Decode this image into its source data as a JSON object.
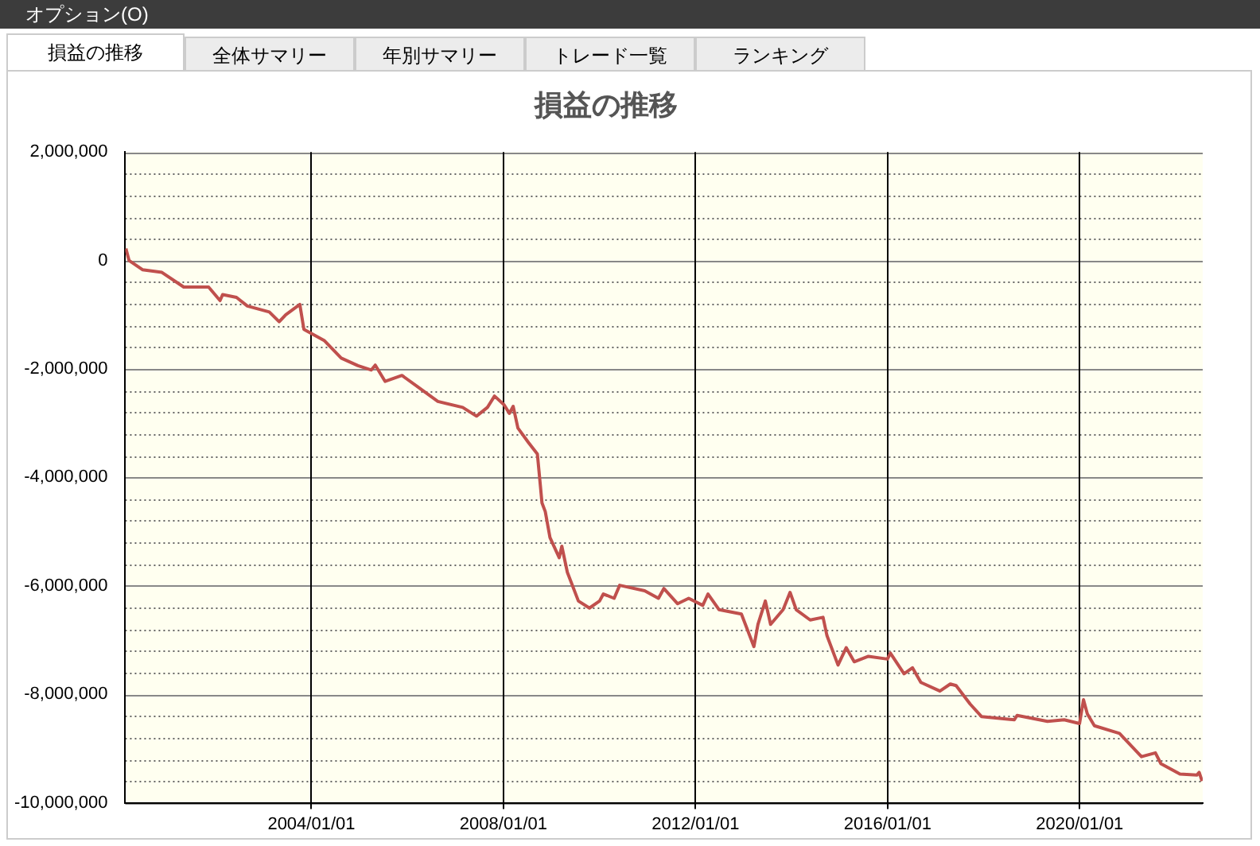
{
  "chart_data": {
    "type": "line",
    "title": "損益の推移",
    "annotations": [
      "オプション(O)",
      "損益の推移",
      "全体サマリー",
      "年別サマリー",
      "トレード一覧",
      "ランキング"
    ],
    "x": [
      "2000-02-20",
      "2000-03-15",
      "2000-06-25",
      "2000-11-20",
      "2001-05-05",
      "2001-11-10",
      "2002-02-05",
      "2002-02-25",
      "2002-06-10",
      "2002-09-01",
      "2003-02-15",
      "2003-05-01",
      "2003-06-20",
      "2003-10-05",
      "2003-11-05",
      "2004-04-10",
      "2004-08-15",
      "2004-12-20",
      "2005-04-01",
      "2005-05-01",
      "2005-07-15",
      "2005-11-20",
      "2006-03-25",
      "2006-08-20",
      "2007-02-25",
      "2007-06-10",
      "2007-09-01",
      "2007-10-25",
      "2008-01-05",
      "2008-02-15",
      "2008-03-15",
      "2008-04-20",
      "2008-07-10",
      "2008-09-15",
      "2008-10-05",
      "2008-10-20",
      "2008-11-14",
      "2008-12-20",
      "2009-02-28",
      "2009-03-20",
      "2009-05-01",
      "2009-07-24",
      "2009-10-16",
      "2010-01-01",
      "2010-01-30",
      "2010-04-22",
      "2010-06-03",
      "2010-12-10",
      "2011-03-25",
      "2011-05-05",
      "2011-08-18",
      "2011-11-10",
      "2012-02-25",
      "2012-04-05",
      "2012-06-28",
      "2012-12-15",
      "2013-03-20",
      "2013-04-20",
      "2013-06-15",
      "2013-07-25",
      "2013-10-28",
      "2013-12-20",
      "2014-02-05",
      "2014-05-22",
      "2014-08-28",
      "2014-09-27",
      "2014-12-20",
      "2015-02-20",
      "2015-04-22",
      "2015-08-08",
      "2015-12-31",
      "2016-01-22",
      "2016-05-05",
      "2016-07-08",
      "2016-09-10",
      "2017-02-02",
      "2017-04-22",
      "2017-06-05",
      "2017-09-20",
      "2017-12-15",
      "2018-08-22",
      "2018-09-12",
      "2019-05-01",
      "2019-09-05",
      "2019-12-31",
      "2020-01-30",
      "2020-02-28",
      "2020-04-22",
      "2020-10-30",
      "2021-04-15",
      "2021-07-30",
      "2021-09-10",
      "2022-02-02",
      "2022-06-10",
      "2022-06-28",
      "2022-07-20"
    ],
    "series": [
      {
        "color": "#c0504d",
        "values": [
          220000,
          0,
          -170000,
          -220000,
          -490000,
          -490000,
          -740000,
          -630000,
          -680000,
          -840000,
          -950000,
          -1130000,
          -1000000,
          -810000,
          -1270000,
          -1480000,
          -1800000,
          -1940000,
          -2020000,
          -1930000,
          -2230000,
          -2120000,
          -2340000,
          -2600000,
          -2710000,
          -2870000,
          -2710000,
          -2500000,
          -2660000,
          -2820000,
          -2690000,
          -3090000,
          -3360000,
          -3570000,
          -4080000,
          -4470000,
          -4630000,
          -5110000,
          -5480000,
          -5270000,
          -5750000,
          -6280000,
          -6410000,
          -6280000,
          -6150000,
          -6230000,
          -5990000,
          -6090000,
          -6230000,
          -6050000,
          -6330000,
          -6230000,
          -6360000,
          -6150000,
          -6440000,
          -6520000,
          -7120000,
          -6710000,
          -6280000,
          -6710000,
          -6440000,
          -6120000,
          -6440000,
          -6630000,
          -6580000,
          -6920000,
          -7460000,
          -7140000,
          -7400000,
          -7300000,
          -7350000,
          -7240000,
          -7620000,
          -7510000,
          -7780000,
          -7940000,
          -7810000,
          -7840000,
          -8180000,
          -8410000,
          -8470000,
          -8390000,
          -8500000,
          -8470000,
          -8540000,
          -8100000,
          -8360000,
          -8580000,
          -8720000,
          -9150000,
          -9080000,
          -9280000,
          -9470000,
          -9490000,
          -9440000,
          -9600000
        ]
      }
    ],
    "xlim": [
      "2000-02-15",
      "2022-07-25"
    ],
    "xticks": [
      {
        "value": "2004-01-01",
        "label": "2004/01/01"
      },
      {
        "value": "2008-01-01",
        "label": "2008/01/01"
      },
      {
        "value": "2012-01-01",
        "label": "2012/01/01"
      },
      {
        "value": "2016-01-01",
        "label": "2016/01/01"
      },
      {
        "value": "2020-01-01",
        "label": "2020/01/01"
      }
    ],
    "ylim": [
      -10000000,
      2000000
    ],
    "yticks": [
      {
        "value": -10000000,
        "label": "-10,000,000"
      },
      {
        "value": -9600000,
        "label": null
      },
      {
        "value": -9200000,
        "label": null
      },
      {
        "value": -8800000,
        "label": null
      },
      {
        "value": -8400000,
        "label": null
      },
      {
        "value": -8000000,
        "label": "-8,000,000"
      },
      {
        "value": -7600000,
        "label": null
      },
      {
        "value": -7200000,
        "label": null
      },
      {
        "value": -6800000,
        "label": null
      },
      {
        "value": -6400000,
        "label": null
      },
      {
        "value": -6000000,
        "label": "-6,000,000"
      },
      {
        "value": -5600000,
        "label": null
      },
      {
        "value": -5200000,
        "label": null
      },
      {
        "value": -4800000,
        "label": null
      },
      {
        "value": -4400000,
        "label": null
      },
      {
        "value": -4000000,
        "label": "-4,000,000"
      },
      {
        "value": -3600000,
        "label": null
      },
      {
        "value": -3200000,
        "label": null
      },
      {
        "value": -2800000,
        "label": null
      },
      {
        "value": -2400000,
        "label": null
      },
      {
        "value": -2000000,
        "label": "-2,000,000"
      },
      {
        "value": -1600000,
        "label": null
      },
      {
        "value": -1200000,
        "label": null
      },
      {
        "value": -800000,
        "label": null
      },
      {
        "value": -400000,
        "label": null
      },
      {
        "value": 0,
        "label": "0"
      },
      {
        "value": 400000,
        "label": null
      },
      {
        "value": 800000,
        "label": null
      },
      {
        "value": 1200000,
        "label": null
      },
      {
        "value": 1600000,
        "label": null
      },
      {
        "value": 2000000,
        "label": "2,000,000"
      }
    ],
    "grid": true,
    "legend": false,
    "marker": "none",
    "line_style": "solid"
  }
}
